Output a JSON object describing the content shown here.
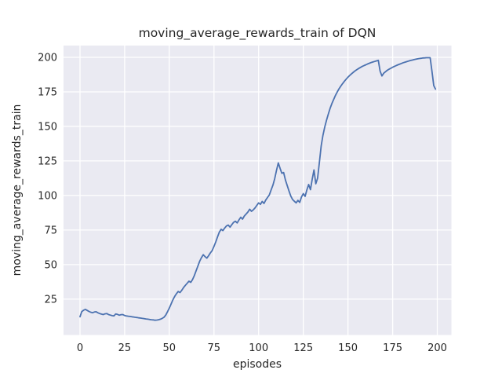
{
  "chart_data": {
    "type": "line",
    "title": "moving_average_rewards_train of DQN",
    "xlabel": "episodes",
    "ylabel": "moving_average_rewards_train",
    "xlim": [
      -9.2,
      207.9
    ],
    "ylim": [
      -0.9,
      208.5
    ],
    "x_ticks": [
      0,
      25,
      50,
      75,
      100,
      125,
      150,
      175,
      200
    ],
    "y_ticks": [
      25,
      50,
      75,
      100,
      125,
      150,
      175,
      200
    ],
    "grid": true,
    "legend": "none",
    "style": {
      "line_color": "#4c72b0",
      "plot_bg": "#eaeaf2",
      "grid_color": "#ffffff",
      "text_color": "#262626",
      "fig_bg": "#ffffff"
    },
    "series": [
      {
        "name": "DQN",
        "x_start": 0,
        "x_step": 1,
        "values": [
          12.3,
          16.0,
          17.0,
          17.6,
          16.9,
          16.2,
          15.6,
          15.2,
          15.7,
          15.9,
          15.2,
          14.6,
          14.2,
          13.9,
          14.4,
          14.6,
          13.9,
          13.5,
          13.1,
          12.9,
          14.3,
          14.0,
          13.4,
          13.8,
          13.9,
          13.2,
          12.9,
          12.7,
          12.5,
          12.3,
          12.1,
          11.9,
          11.7,
          11.5,
          11.3,
          11.1,
          10.9,
          10.7,
          10.5,
          10.3,
          10.1,
          10.0,
          9.8,
          9.9,
          10.1,
          10.5,
          11.1,
          11.9,
          13.5,
          16.0,
          18.5,
          21.5,
          24.5,
          27.0,
          29.0,
          30.6,
          29.8,
          31.5,
          33.5,
          35.0,
          36.5,
          38.0,
          37.2,
          39.2,
          42.0,
          45.5,
          49.0,
          52.5,
          55.0,
          57.2,
          55.8,
          54.7,
          56.5,
          58.5,
          60.2,
          63.2,
          66.5,
          70.0,
          73.5,
          75.6,
          74.6,
          76.5,
          78.0,
          78.6,
          77.1,
          79.0,
          80.6,
          81.4,
          80.2,
          82.4,
          84.3,
          82.9,
          85.2,
          86.6,
          88.1,
          90.1,
          88.6,
          89.6,
          91.1,
          92.9,
          94.7,
          93.6,
          95.7,
          94.3,
          96.7,
          98.6,
          100.5,
          104.1,
          107.6,
          112.1,
          118.2,
          123.6,
          119.6,
          116.1,
          116.6,
          111.2,
          107.2,
          103.2,
          99.6,
          97.1,
          95.8,
          94.7,
          96.5,
          95.0,
          99.0,
          101.4,
          99.4,
          104.0,
          108.0,
          104.2,
          112.0,
          118.5,
          108.5,
          112.5,
          124.0,
          136.0,
          143.5,
          149.5,
          154.5,
          159.0,
          163.0,
          166.5,
          169.5,
          172.5,
          175.0,
          177.2,
          179.2,
          181.0,
          182.7,
          184.2,
          185.6,
          186.9,
          188.1,
          189.2,
          190.2,
          191.1,
          191.9,
          192.7,
          193.4,
          194.0,
          194.6,
          195.2,
          195.7,
          196.2,
          196.6,
          197.0,
          197.4,
          197.8,
          190.0,
          186.5,
          188.5,
          189.6,
          190.6,
          191.4,
          192.1,
          192.8,
          193.4,
          194.0,
          194.6,
          195.1,
          195.6,
          196.1,
          196.5,
          196.9,
          197.3,
          197.7,
          198.0,
          198.3,
          198.6,
          198.9,
          199.1,
          199.3,
          199.5,
          199.6,
          199.7,
          199.7,
          199.7,
          190.0,
          179.5,
          177.0
        ]
      }
    ]
  }
}
